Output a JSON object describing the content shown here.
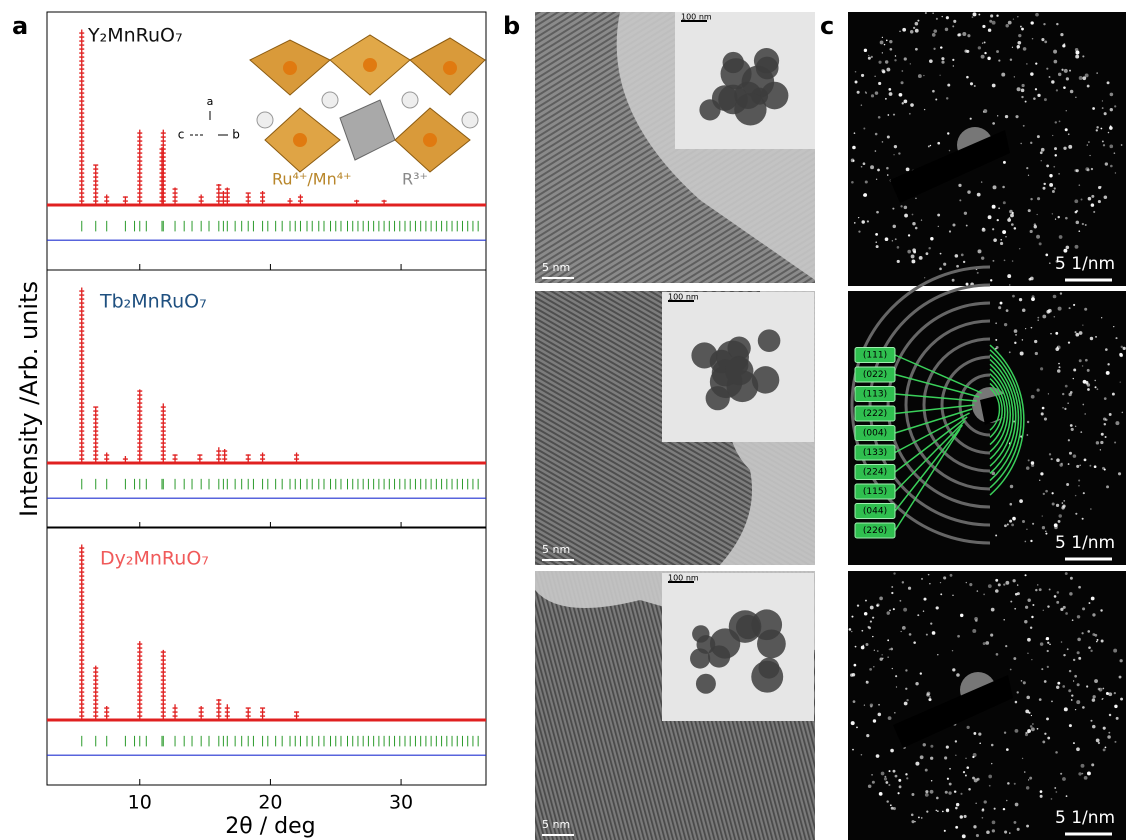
{
  "panel_labels": [
    "a",
    "b",
    "c"
  ],
  "chart_data": [
    {
      "type": "xrd",
      "compound": "Y₂MnRuO₇",
      "compound_color": "#111111",
      "x": [
        5.56,
        6.63,
        7.47,
        8.9,
        10.0,
        11.7,
        11.8,
        12.7,
        14.7,
        16.05,
        16.4,
        16.7,
        18.3,
        19.4,
        21.5,
        22.3,
        26.6,
        28.7
      ],
      "values": [
        100,
        23,
        6,
        5,
        43,
        33,
        43,
        10,
        6,
        12,
        8,
        10,
        7,
        8,
        4,
        6,
        3,
        3
      ],
      "reflections": [
        5.56,
        6.63,
        7.47,
        8.9,
        9.6,
        10.0,
        10.5,
        11.7,
        11.8,
        12.7,
        13.4,
        14.0,
        14.7,
        15.3,
        16.05,
        16.4,
        16.7,
        17.3,
        17.8,
        18.3,
        18.7,
        19.4,
        19.8,
        20.4,
        20.9,
        21.5,
        21.9,
        22.3,
        22.8,
        23.2,
        23.7,
        24.1,
        24.6,
        25.0,
        25.4,
        25.9,
        26.3,
        26.7,
        27.1,
        27.5,
        27.9,
        28.3,
        28.7,
        29.1,
        29.5,
        29.9,
        30.3,
        30.7,
        31.1,
        31.5,
        31.9,
        32.3,
        32.7,
        33.1,
        33.5,
        33.9,
        34.3,
        34.7,
        35.1,
        35.5,
        35.9
      ],
      "xlim": [
        2.9,
        36.5
      ],
      "ylim": [
        -37,
        110
      ],
      "xticks": [
        10,
        20,
        30
      ]
    },
    {
      "type": "xrd",
      "compound": "Tb₂MnRuO₇",
      "compound_color": "#1f5080",
      "y_label": "Intensity /Arb. units",
      "x": [
        5.56,
        6.63,
        7.47,
        8.9,
        10.0,
        11.8,
        12.7,
        14.6,
        16.05,
        16.5,
        18.3,
        19.4,
        22.0
      ],
      "values": [
        100,
        32,
        6,
        4,
        42,
        34,
        5,
        5,
        9,
        8,
        5,
        6,
        6
      ],
      "reflections": [
        5.56,
        6.63,
        7.47,
        8.9,
        9.6,
        10.0,
        10.5,
        11.7,
        11.8,
        12.7,
        13.4,
        14.0,
        14.7,
        15.3,
        16.05,
        16.4,
        16.7,
        17.3,
        17.8,
        18.3,
        18.7,
        19.4,
        19.8,
        20.4,
        20.9,
        21.5,
        21.9,
        22.3,
        22.8,
        23.2,
        23.7,
        24.1,
        24.6,
        25.0,
        25.4,
        25.9,
        26.3,
        26.7,
        27.1,
        27.5,
        27.9,
        28.3,
        28.7,
        29.1,
        29.5,
        29.9,
        30.3,
        30.7,
        31.1,
        31.5,
        31.9,
        32.3,
        32.7,
        33.1,
        33.5,
        33.9,
        34.3,
        34.7,
        35.1,
        35.5,
        35.9
      ],
      "xlim": [
        2.9,
        36.5
      ],
      "ylim": [
        -37,
        110
      ],
      "xticks": [
        10,
        20,
        30
      ]
    },
    {
      "type": "xrd",
      "compound": "Dy₂MnRuO₇",
      "compound_color": "#f05a5a",
      "x_label": "2θ / deg",
      "x": [
        5.56,
        6.63,
        7.47,
        10.0,
        11.8,
        12.7,
        14.7,
        16.05,
        16.7,
        18.3,
        19.4,
        22.0
      ],
      "values": [
        100,
        31,
        8,
        45,
        40,
        9,
        8,
        12,
        9,
        7,
        7,
        5
      ],
      "reflections": [
        5.56,
        6.63,
        7.47,
        8.9,
        9.6,
        10.0,
        10.5,
        11.7,
        11.8,
        12.7,
        13.4,
        14.0,
        14.7,
        15.3,
        16.05,
        16.4,
        16.7,
        17.3,
        17.8,
        18.3,
        18.7,
        19.4,
        19.8,
        20.4,
        20.9,
        21.5,
        21.9,
        22.3,
        22.8,
        23.2,
        23.7,
        24.1,
        24.6,
        25.0,
        25.4,
        25.9,
        26.3,
        26.7,
        27.1,
        27.5,
        27.9,
        28.3,
        28.7,
        29.1,
        29.5,
        29.9,
        30.3,
        30.7,
        31.1,
        31.5,
        31.9,
        32.3,
        32.7,
        33.1,
        33.5,
        33.9,
        34.3,
        34.7,
        35.1,
        35.5,
        35.9
      ],
      "xlim": [
        2.9,
        36.5
      ],
      "ylim": [
        -37,
        110
      ],
      "xticks": [
        10,
        20,
        30
      ]
    }
  ],
  "structure_inset": {
    "axes": [
      "a",
      "c",
      "b"
    ],
    "ion_labels": [
      "Ru⁴⁺/Mn⁴⁺",
      "R³⁺"
    ]
  },
  "tem_images": [
    {
      "scale": "5 nm",
      "inset_scale": "100 nm"
    },
    {
      "scale": "5 nm",
      "inset_scale": "100 nm"
    },
    {
      "scale": "5 nm",
      "inset_scale": "100 nm"
    }
  ],
  "diffraction_images": [
    {
      "scale": "5 1/nm"
    },
    {
      "scale": "5 1/nm"
    },
    {
      "scale": "5 1/nm"
    }
  ],
  "ring_indices": [
    "(111)",
    "(022)",
    "(113)",
    "(222)",
    "(004)",
    "(133)",
    "(224)",
    "(115)",
    "(044)",
    "(226)"
  ]
}
